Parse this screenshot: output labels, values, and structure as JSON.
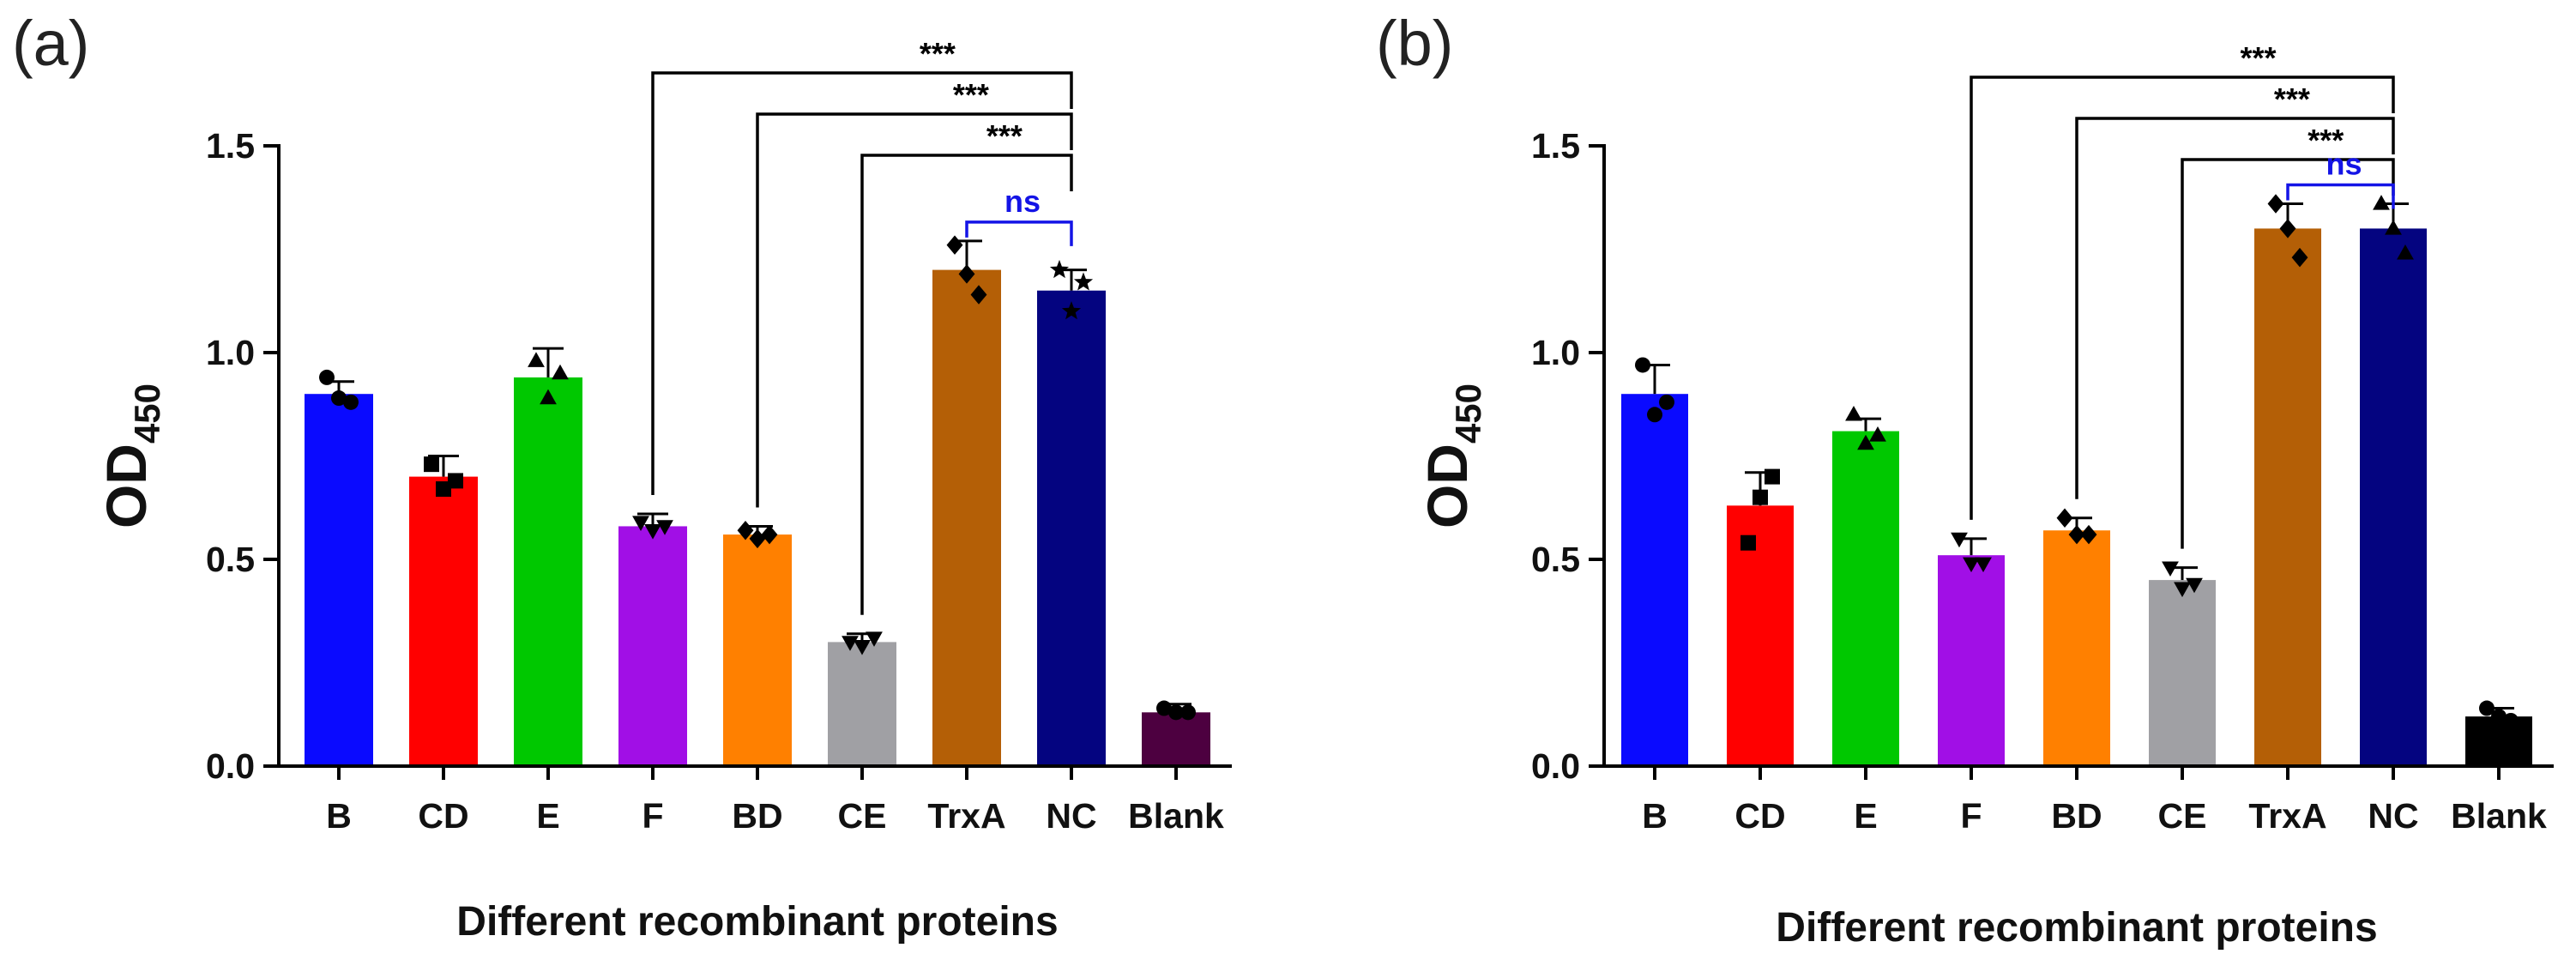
{
  "chart_data": [
    {
      "panel_label": "(a)",
      "type": "bar",
      "ylabel": "OD",
      "ylabel_sub": "450",
      "xlabel": "Different recombinant proteins",
      "ylim": [
        0,
        1.5
      ],
      "yticks": [
        "0.0",
        "0.5",
        "1.0",
        "1.5"
      ],
      "categories": [
        "B",
        "CD",
        "E",
        "F",
        "BD",
        "CE",
        "TrxA",
        "NC",
        "Blank"
      ],
      "values": [
        0.9,
        0.7,
        0.94,
        0.58,
        0.56,
        0.3,
        1.2,
        1.15,
        0.13
      ],
      "errors": [
        0.03,
        0.05,
        0.07,
        0.03,
        0.02,
        0.02,
        0.07,
        0.05,
        0.02
      ],
      "points": [
        [
          0.94,
          0.89,
          0.88
        ],
        [
          0.73,
          0.67,
          0.69
        ],
        [
          0.98,
          0.89,
          0.95
        ],
        [
          0.59,
          0.57,
          0.58
        ],
        [
          0.57,
          0.55,
          0.56
        ],
        [
          0.3,
          0.29,
          0.31
        ],
        [
          1.26,
          1.19,
          1.14
        ],
        [
          1.2,
          1.1,
          1.17
        ],
        [
          0.14,
          0.13,
          0.13
        ]
      ],
      "markers": [
        "circle",
        "square",
        "triangle",
        "triangle-down",
        "diamond",
        "triangle-down",
        "diamond",
        "star",
        "circle"
      ],
      "colors": [
        "#0a0aff",
        "#ff0000",
        "#00c800",
        "#a10fe6",
        "#ff8000",
        "#a0a0a4",
        "#b45f06",
        "#040480",
        "#4d0040"
      ],
      "comparisons": [
        {
          "from": "F",
          "to": "NC",
          "label": "***",
          "color": "#000000"
        },
        {
          "from": "BD",
          "to": "NC",
          "label": "***",
          "color": "#000000"
        },
        {
          "from": "CE",
          "to": "NC",
          "label": "***",
          "color": "#000000"
        },
        {
          "from": "TrxA",
          "to": "NC",
          "label": "ns",
          "color": "#1414e6"
        }
      ]
    },
    {
      "panel_label": "(b)",
      "type": "bar",
      "ylabel": "OD",
      "ylabel_sub": "450",
      "xlabel": "Different recombinant proteins",
      "ylim": [
        0,
        1.5
      ],
      "yticks": [
        "0.0",
        "0.5",
        "1.0",
        "1.5"
      ],
      "categories": [
        "B",
        "CD",
        "E",
        "F",
        "BD",
        "CE",
        "TrxA",
        "NC",
        "Blank"
      ],
      "values": [
        0.9,
        0.63,
        0.81,
        0.51,
        0.57,
        0.45,
        1.3,
        1.3,
        0.12
      ],
      "errors": [
        0.07,
        0.08,
        0.03,
        0.04,
        0.03,
        0.03,
        0.06,
        0.06,
        0.02
      ],
      "points": [
        [
          0.97,
          0.85,
          0.88
        ],
        [
          0.54,
          0.65,
          0.7
        ],
        [
          0.85,
          0.78,
          0.8
        ],
        [
          0.55,
          0.49,
          0.49
        ],
        [
          0.6,
          0.56,
          0.56
        ],
        [
          0.48,
          0.43,
          0.44
        ],
        [
          1.36,
          1.3,
          1.23
        ],
        [
          1.36,
          1.3,
          1.24
        ],
        [
          0.14,
          0.12,
          0.11
        ]
      ],
      "markers": [
        "circle",
        "square",
        "triangle",
        "triangle-down",
        "diamond",
        "triangle-down",
        "diamond",
        "triangle",
        "circle"
      ],
      "colors": [
        "#0a0aff",
        "#ff0000",
        "#00c800",
        "#a10fe6",
        "#ff8000",
        "#a0a0a4",
        "#b45f06",
        "#040480",
        "#000000"
      ],
      "comparisons": [
        {
          "from": "F",
          "to": "NC",
          "label": "***",
          "color": "#000000"
        },
        {
          "from": "BD",
          "to": "NC",
          "label": "***",
          "color": "#000000"
        },
        {
          "from": "CE",
          "to": "NC",
          "label": "***",
          "color": "#000000"
        },
        {
          "from": "TrxA",
          "to": "NC",
          "label": "ns",
          "color": "#1414e6"
        }
      ]
    }
  ]
}
